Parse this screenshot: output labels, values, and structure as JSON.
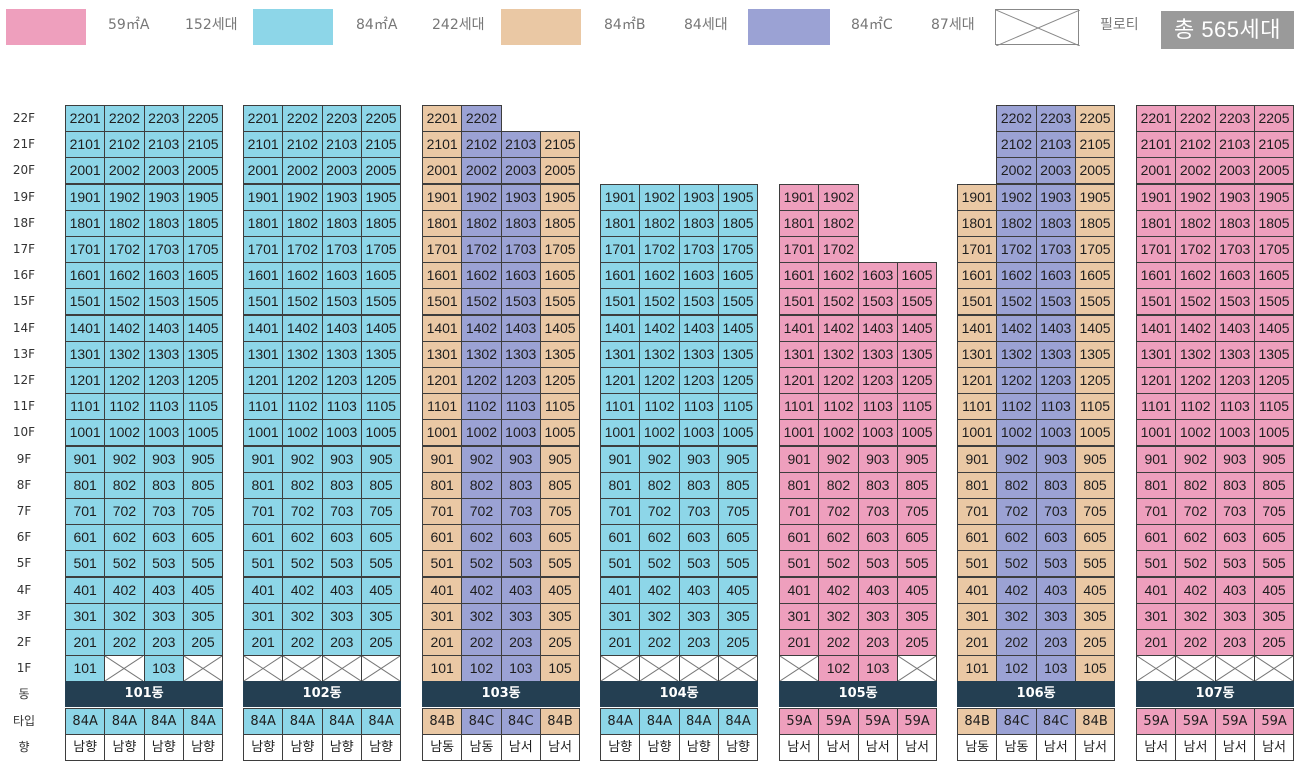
{
  "legend": {
    "items": [
      {
        "type": "59A",
        "size_label": "59㎡A",
        "count_label": "152세대",
        "color": "#ee9fbd"
      },
      {
        "type": "84A",
        "size_label": "84㎡A",
        "count_label": "242세대",
        "color": "#8dd6e8"
      },
      {
        "type": "84B",
        "size_label": "84㎡B",
        "count_label": "84세대",
        "color": "#eac8a4"
      },
      {
        "type": "84C",
        "size_label": "84㎡C",
        "count_label": "87세대",
        "color": "#9ba2d4"
      }
    ],
    "pilotis_label": "필로티",
    "total_label": "총 565세대"
  },
  "row_labels": {
    "building": "동",
    "type": "타입",
    "orientation": "향"
  },
  "floors": [
    "22F",
    "21F",
    "20F",
    "19F",
    "18F",
    "17F",
    "16F",
    "15F",
    "14F",
    "13F",
    "12F",
    "11F",
    "10F",
    "9F",
    "8F",
    "7F",
    "6F",
    "5F",
    "4F",
    "3F",
    "2F",
    "1F"
  ],
  "colors": {
    "building_bar": "#243f52"
  },
  "chart_data": {
    "type": "table",
    "buildings": [
      {
        "name": "101동",
        "lines": [
          {
            "line": "01",
            "type": "84A",
            "orientation": "남향",
            "top_floor": 22,
            "pilotis": []
          },
          {
            "line": "02",
            "type": "84A",
            "orientation": "남향",
            "top_floor": 22,
            "pilotis": [
              1
            ]
          },
          {
            "line": "03",
            "type": "84A",
            "orientation": "남향",
            "top_floor": 22,
            "pilotis": []
          },
          {
            "line": "05",
            "type": "84A",
            "orientation": "남향",
            "top_floor": 22,
            "pilotis": [
              1
            ]
          }
        ]
      },
      {
        "name": "102동",
        "lines": [
          {
            "line": "01",
            "type": "84A",
            "orientation": "남향",
            "top_floor": 22,
            "pilotis": [
              1
            ]
          },
          {
            "line": "02",
            "type": "84A",
            "orientation": "남향",
            "top_floor": 22,
            "pilotis": [
              1
            ]
          },
          {
            "line": "03",
            "type": "84A",
            "orientation": "남향",
            "top_floor": 22,
            "pilotis": [
              1
            ]
          },
          {
            "line": "05",
            "type": "84A",
            "orientation": "남향",
            "top_floor": 22,
            "pilotis": [
              1
            ]
          }
        ]
      },
      {
        "name": "103동",
        "lines": [
          {
            "line": "01",
            "type": "84B",
            "orientation": "남동",
            "top_floor": 22,
            "pilotis": []
          },
          {
            "line": "02",
            "type": "84C",
            "orientation": "남동",
            "top_floor": 22,
            "pilotis": []
          },
          {
            "line": "03",
            "type": "84C",
            "orientation": "남서",
            "top_floor": 21,
            "pilotis": []
          },
          {
            "line": "05",
            "type": "84B",
            "orientation": "남서",
            "top_floor": 21,
            "pilotis": []
          }
        ]
      },
      {
        "name": "104동",
        "lines": [
          {
            "line": "01",
            "type": "84A",
            "orientation": "남향",
            "top_floor": 19,
            "pilotis": [
              1
            ]
          },
          {
            "line": "02",
            "type": "84A",
            "orientation": "남향",
            "top_floor": 19,
            "pilotis": [
              1
            ]
          },
          {
            "line": "03",
            "type": "84A",
            "orientation": "남향",
            "top_floor": 19,
            "pilotis": [
              1
            ]
          },
          {
            "line": "05",
            "type": "84A",
            "orientation": "남향",
            "top_floor": 19,
            "pilotis": [
              1
            ]
          }
        ]
      },
      {
        "name": "105동",
        "lines": [
          {
            "line": "01",
            "type": "59A",
            "orientation": "남서",
            "top_floor": 19,
            "pilotis": [
              1
            ]
          },
          {
            "line": "02",
            "type": "59A",
            "orientation": "남서",
            "top_floor": 19,
            "pilotis": []
          },
          {
            "line": "03",
            "type": "59A",
            "orientation": "남서",
            "top_floor": 16,
            "pilotis": []
          },
          {
            "line": "05",
            "type": "59A",
            "orientation": "남서",
            "top_floor": 16,
            "pilotis": [
              1
            ]
          }
        ]
      },
      {
        "name": "106동",
        "lines": [
          {
            "line": "01",
            "type": "84B",
            "orientation": "남동",
            "top_floor": 19,
            "pilotis": []
          },
          {
            "line": "02",
            "type": "84C",
            "orientation": "남동",
            "top_floor": 22,
            "pilotis": []
          },
          {
            "line": "03",
            "type": "84C",
            "orientation": "남서",
            "top_floor": 22,
            "pilotis": []
          },
          {
            "line": "05",
            "type": "84B",
            "orientation": "남서",
            "top_floor": 22,
            "pilotis": []
          }
        ]
      },
      {
        "name": "107동",
        "lines": [
          {
            "line": "01",
            "type": "59A",
            "orientation": "남서",
            "top_floor": 22,
            "pilotis": [
              1
            ]
          },
          {
            "line": "02",
            "type": "59A",
            "orientation": "남서",
            "top_floor": 22,
            "pilotis": [
              1
            ]
          },
          {
            "line": "03",
            "type": "59A",
            "orientation": "남서",
            "top_floor": 22,
            "pilotis": [
              1
            ]
          },
          {
            "line": "05",
            "type": "59A",
            "orientation": "남서",
            "top_floor": 22,
            "pilotis": [
              1
            ]
          }
        ]
      }
    ]
  }
}
